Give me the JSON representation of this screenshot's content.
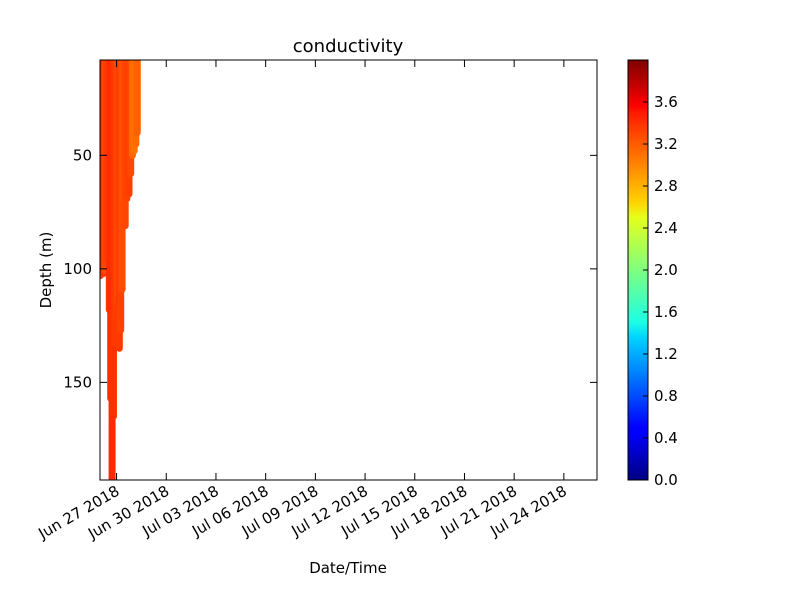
{
  "chart_data": {
    "type": "scatter",
    "title": "conductivity",
    "xlabel": "Date/Time",
    "ylabel": "Depth (m)",
    "x_axis": {
      "type": "date",
      "range": [
        "2018-06-26",
        "2018-07-26"
      ],
      "ticks": [
        {
          "date": "2018-06-27",
          "label": "Jun 27 2018"
        },
        {
          "date": "2018-06-30",
          "label": "Jun 30 2018"
        },
        {
          "date": "2018-07-03",
          "label": "Jul 03 2018"
        },
        {
          "date": "2018-07-06",
          "label": "Jul 06 2018"
        },
        {
          "date": "2018-07-09",
          "label": "Jul 09 2018"
        },
        {
          "date": "2018-07-12",
          "label": "Jul 12 2018"
        },
        {
          "date": "2018-07-15",
          "label": "Jul 15 2018"
        },
        {
          "date": "2018-07-18",
          "label": "Jul 18 2018"
        },
        {
          "date": "2018-07-21",
          "label": "Jul 21 2018"
        },
        {
          "date": "2018-07-24",
          "label": "Jul 24 2018"
        }
      ]
    },
    "y_axis": {
      "range": [
        8,
        193
      ],
      "inverted": true,
      "ticks": [
        50,
        100,
        150
      ]
    },
    "colorbar": {
      "range": [
        0.0,
        4.0
      ],
      "colormap": "jet",
      "ticks": [
        0.0,
        0.4,
        0.8,
        1.2,
        1.6,
        2.0,
        2.4,
        2.8,
        3.2,
        3.6
      ],
      "tick_labels": [
        "0.0",
        "0.4",
        "0.8",
        "1.2",
        "1.6",
        "2.0",
        "2.4",
        "2.8",
        "3.2",
        "3.6"
      ]
    },
    "profiles": [
      {
        "time": "2018-06-26 00:30",
        "depth_min": 8,
        "depth_max": 103,
        "value": 3.25
      },
      {
        "time": "2018-06-26 03:00",
        "depth_min": 8,
        "depth_max": 100,
        "value": 3.28
      },
      {
        "time": "2018-06-26 05:30",
        "depth_min": 8,
        "depth_max": 102,
        "value": 3.3
      },
      {
        "time": "2018-06-26 08:00",
        "depth_min": 8,
        "depth_max": 101,
        "value": 3.22
      },
      {
        "time": "2018-06-26 10:00",
        "depth_min": 8,
        "depth_max": 96,
        "value": 3.27
      },
      {
        "time": "2018-06-26 13:30",
        "depth_min": 8,
        "depth_max": 118,
        "value": 3.3
      },
      {
        "time": "2018-06-26 15:30",
        "depth_min": 8,
        "depth_max": 157,
        "value": 3.32
      },
      {
        "time": "2018-06-26 17:30",
        "depth_min": 8,
        "depth_max": 193,
        "value": 3.33
      },
      {
        "time": "2018-06-26 19:30",
        "depth_min": 8,
        "depth_max": 165,
        "value": 3.31
      },
      {
        "time": "2018-06-26 21:30",
        "depth_min": 8,
        "depth_max": 133,
        "value": 3.28
      },
      {
        "time": "2018-06-27 00:00",
        "depth_min": 8,
        "depth_max": 122,
        "value": 3.25
      },
      {
        "time": "2018-06-27 02:00",
        "depth_min": 8,
        "depth_max": 115,
        "value": 3.2
      },
      {
        "time": "2018-06-27 04:00",
        "depth_min": 8,
        "depth_max": 135,
        "value": 3.28
      },
      {
        "time": "2018-06-27 06:00",
        "depth_min": 8,
        "depth_max": 127,
        "value": 3.24
      },
      {
        "time": "2018-06-27 08:00",
        "depth_min": 8,
        "depth_max": 109,
        "value": 3.2
      },
      {
        "time": "2018-06-27 10:00",
        "depth_min": 8,
        "depth_max": 70,
        "value": 3.18
      },
      {
        "time": "2018-06-27 12:30",
        "depth_min": 8,
        "depth_max": 81,
        "value": 3.22
      },
      {
        "time": "2018-06-27 15:00",
        "depth_min": 8,
        "depth_max": 69,
        "value": 3.24
      },
      {
        "time": "2018-06-27 18:00",
        "depth_min": 8,
        "depth_max": 67,
        "value": 3.26
      },
      {
        "time": "2018-06-27 20:30",
        "depth_min": 8,
        "depth_max": 58,
        "value": 3.22
      },
      {
        "time": "2018-06-27 23:00",
        "depth_min": 8,
        "depth_max": 50,
        "value": 3.1
      },
      {
        "time": "2018-06-28 01:30",
        "depth_min": 8,
        "depth_max": 48,
        "value": 3.05
      },
      {
        "time": "2018-06-28 04:00",
        "depth_min": 8,
        "depth_max": 45,
        "value": 3.08
      },
      {
        "time": "2018-06-28 06:00",
        "depth_min": 8,
        "depth_max": 40,
        "value": 3.12
      }
    ]
  }
}
